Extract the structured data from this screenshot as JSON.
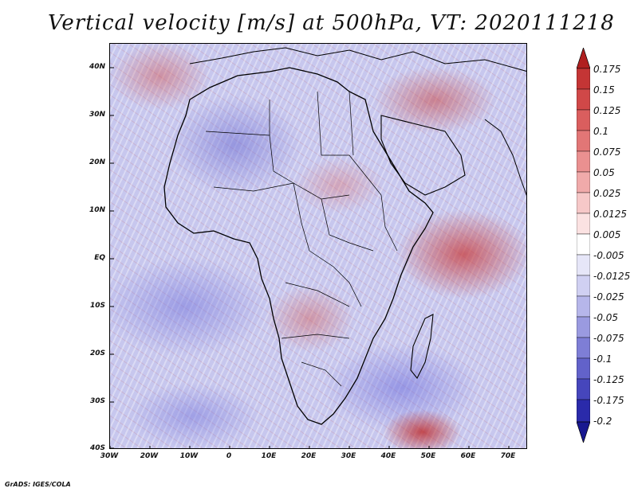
{
  "title": "Vertical velocity [m/s] at 500hPa, VT: 2020111218",
  "credit": "GrADS: IGES/COLA",
  "map": {
    "lat_ticks": [
      "40N",
      "30N",
      "20N",
      "10N",
      "EQ",
      "10S",
      "20S",
      "30S",
      "40S"
    ],
    "lon_ticks": [
      "30W",
      "20W",
      "10W",
      "0",
      "10E",
      "20E",
      "30E",
      "40E",
      "50E",
      "60E",
      "70E"
    ],
    "lat_range": [
      -40,
      45
    ],
    "lon_range": [
      -30,
      75
    ]
  },
  "colorbar": {
    "labels": [
      "0.175",
      "0.15",
      "0.125",
      "0.1",
      "0.075",
      "0.05",
      "0.025",
      "0.0125",
      "0.005",
      "-0.005",
      "-0.0125",
      "-0.025",
      "-0.05",
      "-0.075",
      "-0.1",
      "-0.125",
      "-0.175",
      "-0.2"
    ],
    "colors": [
      "#b02020",
      "#c43535",
      "#d04848",
      "#da5e5e",
      "#e27676",
      "#ea9090",
      "#f0aaaa",
      "#f6c8c8",
      "#ffffff",
      "#d8d8f4",
      "#c2c2ee",
      "#aaaae6",
      "#9090dc",
      "#7676d2",
      "#5c5cc8",
      "#4040b8",
      "#2020a0",
      "#181890"
    ]
  }
}
